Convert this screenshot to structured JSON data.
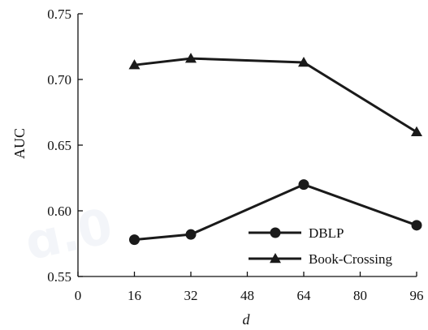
{
  "chart_data": {
    "type": "line",
    "x": [
      16,
      32,
      64,
      96
    ],
    "series": [
      {
        "name": "DBLP",
        "marker": "circle",
        "values": [
          0.578,
          0.582,
          0.62,
          0.589
        ]
      },
      {
        "name": "Book-Crossing",
        "marker": "triangle",
        "values": [
          0.711,
          0.716,
          0.713,
          0.66
        ]
      }
    ],
    "title": "",
    "xlabel": "d",
    "ylabel": "AUC",
    "xlim": [
      0,
      96
    ],
    "ylim": [
      0.55,
      0.75
    ],
    "xticks": [
      "0",
      "16",
      "32",
      "48",
      "64",
      "80",
      "96"
    ],
    "yticks": [
      "0.55",
      "0.60",
      "0.65",
      "0.70",
      "0.75"
    ],
    "grid": false,
    "legend_position": "bottom-right",
    "line_color": "#1a1a1a"
  }
}
